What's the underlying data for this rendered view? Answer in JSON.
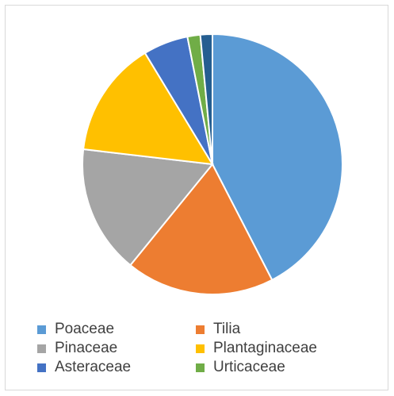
{
  "chart_data": {
    "type": "pie",
    "title": "",
    "categories": [
      "Poaceae",
      "Tilia",
      "Pinaceae",
      "Plantaginaceae",
      "Asteraceae",
      "Urticaceae",
      ""
    ],
    "values": [
      42.5,
      18.5,
      16.0,
      14.5,
      5.6,
      1.6,
      1.5
    ],
    "colors": [
      "#5b9bd5",
      "#ed7d31",
      "#a5a5a5",
      "#ffc000",
      "#4472c4",
      "#70ad47",
      "#255e91"
    ],
    "legend": {
      "placement": "bottom",
      "entries": [
        "Poaceae",
        "Tilia",
        "Pinaceae",
        "Plantaginaceae",
        "Asteraceae",
        "Urticaceae"
      ]
    }
  }
}
